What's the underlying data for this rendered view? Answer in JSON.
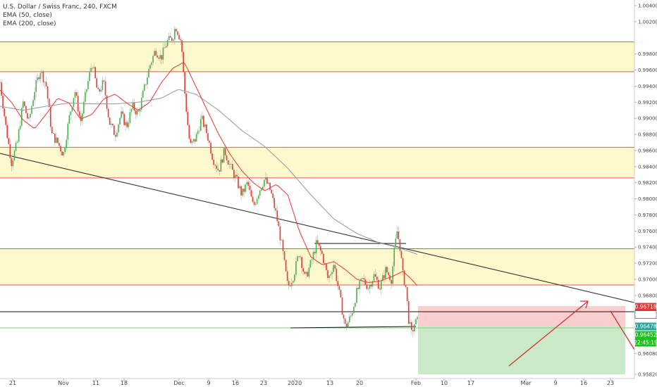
{
  "legend": {
    "title": "U.S. Dollar / Swiss Franc, 240, FXCM",
    "ema50": "EMA (50, close)",
    "ema200": "EMA (200, close)"
  },
  "chart_data": {
    "type": "candlestick",
    "symbol": "U.S. Dollar / Swiss Franc",
    "timeframe": "240",
    "source": "FXCM",
    "ylim": [
      0.9582,
      1.004
    ],
    "x_ticks": [
      "21",
      "Nov",
      "11",
      "18",
      "Dec",
      "9",
      "16",
      "23",
      "2020",
      "13",
      "20",
      "Feb",
      "10",
      "17",
      "Mar",
      "9",
      "16",
      "23"
    ],
    "y_ticks": [
      "1.00400",
      "1.00200",
      "0.99800",
      "0.99600",
      "0.99400",
      "0.99200",
      "0.99000",
      "0.98800",
      "0.98600",
      "0.98400",
      "0.98200",
      "0.98000",
      "0.97800",
      "0.97600",
      "0.97400",
      "0.97200",
      "0.97000",
      "0.96800",
      "0.96250",
      "0.96080",
      "0.95820"
    ],
    "price_tags": [
      {
        "label": "0.96718",
        "value": 0.96718,
        "color": "#e53935"
      },
      {
        "label": "0.96646",
        "value": 0.96646,
        "color": "#ffffff"
      },
      {
        "label": "0.96478",
        "value": 0.96478,
        "color": "#26a69a"
      },
      {
        "label": "0.96452",
        "value": 0.96452,
        "color": "#1fbf1f"
      },
      {
        "label": "22:45:19",
        "value": 0.96388,
        "color": "#1fbf1f"
      }
    ],
    "zones": [
      {
        "from": 0.9958,
        "to": 0.9995
      },
      {
        "from": 0.9826,
        "to": 0.9864
      },
      {
        "from": 0.9693,
        "to": 0.9738
      }
    ],
    "ema50": [
      {
        "t": 0,
        "v": 0.9935
      },
      {
        "t": 4,
        "v": 0.992
      },
      {
        "t": 8,
        "v": 0.9898
      },
      {
        "t": 12,
        "v": 0.9887
      },
      {
        "t": 16,
        "v": 0.9905
      },
      {
        "t": 20,
        "v": 0.9925
      },
      {
        "t": 24,
        "v": 0.9919
      },
      {
        "t": 28,
        "v": 0.9899
      },
      {
        "t": 32,
        "v": 0.9905
      },
      {
        "t": 36,
        "v": 0.9924
      },
      {
        "t": 40,
        "v": 0.993
      },
      {
        "t": 44,
        "v": 0.9919
      },
      {
        "t": 48,
        "v": 0.991
      },
      {
        "t": 52,
        "v": 0.992
      },
      {
        "t": 56,
        "v": 0.9944
      },
      {
        "t": 60,
        "v": 0.9962
      },
      {
        "t": 64,
        "v": 0.997
      },
      {
        "t": 68,
        "v": 0.994
      },
      {
        "t": 72,
        "v": 0.991
      },
      {
        "t": 76,
        "v": 0.988
      },
      {
        "t": 80,
        "v": 0.9855
      },
      {
        "t": 84,
        "v": 0.9835
      },
      {
        "t": 88,
        "v": 0.982
      },
      {
        "t": 92,
        "v": 0.981
      },
      {
        "t": 96,
        "v": 0.9818
      },
      {
        "t": 100,
        "v": 0.9805
      },
      {
        "t": 104,
        "v": 0.976
      },
      {
        "t": 108,
        "v": 0.9728
      },
      {
        "t": 112,
        "v": 0.9718
      },
      {
        "t": 116,
        "v": 0.9722
      },
      {
        "t": 120,
        "v": 0.9712
      },
      {
        "t": 124,
        "v": 0.97
      },
      {
        "t": 128,
        "v": 0.9696
      },
      {
        "t": 132,
        "v": 0.9698
      },
      {
        "t": 136,
        "v": 0.9703
      },
      {
        "t": 140,
        "v": 0.971
      },
      {
        "t": 143,
        "v": 0.97
      },
      {
        "t": 145,
        "v": 0.9692
      }
    ],
    "ema200": [
      {
        "t": 0,
        "v": 0.9915
      },
      {
        "t": 8,
        "v": 0.991
      },
      {
        "t": 16,
        "v": 0.9915
      },
      {
        "t": 24,
        "v": 0.9919
      },
      {
        "t": 32,
        "v": 0.9918
      },
      {
        "t": 40,
        "v": 0.9918
      },
      {
        "t": 48,
        "v": 0.992
      },
      {
        "t": 56,
        "v": 0.9925
      },
      {
        "t": 62,
        "v": 0.9936
      },
      {
        "t": 68,
        "v": 0.993
      },
      {
        "t": 76,
        "v": 0.991
      },
      {
        "t": 84,
        "v": 0.9885
      },
      {
        "t": 92,
        "v": 0.9865
      },
      {
        "t": 100,
        "v": 0.9838
      },
      {
        "t": 108,
        "v": 0.9805
      },
      {
        "t": 116,
        "v": 0.9775
      },
      {
        "t": 124,
        "v": 0.9757
      },
      {
        "t": 132,
        "v": 0.9745
      },
      {
        "t": 138,
        "v": 0.974
      },
      {
        "t": 142,
        "v": 0.9735
      },
      {
        "t": 145,
        "v": 0.9731
      }
    ],
    "close_path": [
      {
        "t": 0,
        "v": 0.9945
      },
      {
        "t": 2,
        "v": 0.989
      },
      {
        "t": 4,
        "v": 0.9845
      },
      {
        "t": 6,
        "v": 0.987
      },
      {
        "t": 8,
        "v": 0.992
      },
      {
        "t": 10,
        "v": 0.9895
      },
      {
        "t": 12,
        "v": 0.9935
      },
      {
        "t": 14,
        "v": 0.996
      },
      {
        "t": 16,
        "v": 0.9942
      },
      {
        "t": 18,
        "v": 0.988
      },
      {
        "t": 20,
        "v": 0.987
      },
      {
        "t": 22,
        "v": 0.9855
      },
      {
        "t": 24,
        "v": 0.99
      },
      {
        "t": 26,
        "v": 0.9935
      },
      {
        "t": 28,
        "v": 0.9895
      },
      {
        "t": 30,
        "v": 0.9935
      },
      {
        "t": 32,
        "v": 0.997
      },
      {
        "t": 34,
        "v": 0.993
      },
      {
        "t": 36,
        "v": 0.9945
      },
      {
        "t": 38,
        "v": 0.9895
      },
      {
        "t": 40,
        "v": 0.988
      },
      {
        "t": 42,
        "v": 0.9905
      },
      {
        "t": 44,
        "v": 0.989
      },
      {
        "t": 46,
        "v": 0.9915
      },
      {
        "t": 48,
        "v": 0.9905
      },
      {
        "t": 50,
        "v": 0.9935
      },
      {
        "t": 52,
        "v": 0.9965
      },
      {
        "t": 54,
        "v": 0.9985
      },
      {
        "t": 56,
        "v": 0.9975
      },
      {
        "t": 58,
        "v": 0.9995
      },
      {
        "t": 60,
        "v": 1.0
      },
      {
        "t": 61,
        "v": 1.0015
      },
      {
        "t": 63,
        "v": 0.9995
      },
      {
        "t": 64,
        "v": 0.994
      },
      {
        "t": 65,
        "v": 0.99
      },
      {
        "t": 66,
        "v": 0.9865
      },
      {
        "t": 68,
        "v": 0.9875
      },
      {
        "t": 70,
        "v": 0.99
      },
      {
        "t": 72,
        "v": 0.988
      },
      {
        "t": 74,
        "v": 0.985
      },
      {
        "t": 76,
        "v": 0.9835
      },
      {
        "t": 78,
        "v": 0.986
      },
      {
        "t": 80,
        "v": 0.984
      },
      {
        "t": 82,
        "v": 0.9825
      },
      {
        "t": 84,
        "v": 0.9805
      },
      {
        "t": 86,
        "v": 0.982
      },
      {
        "t": 88,
        "v": 0.979
      },
      {
        "t": 90,
        "v": 0.981
      },
      {
        "t": 92,
        "v": 0.9825
      },
      {
        "t": 94,
        "v": 0.981
      },
      {
        "t": 96,
        "v": 0.978
      },
      {
        "t": 98,
        "v": 0.974
      },
      {
        "t": 100,
        "v": 0.969
      },
      {
        "t": 102,
        "v": 0.9705
      },
      {
        "t": 104,
        "v": 0.9735
      },
      {
        "t": 106,
        "v": 0.97
      },
      {
        "t": 108,
        "v": 0.972
      },
      {
        "t": 110,
        "v": 0.9745
      },
      {
        "t": 112,
        "v": 0.973
      },
      {
        "t": 114,
        "v": 0.97
      },
      {
        "t": 116,
        "v": 0.972
      },
      {
        "t": 118,
        "v": 0.968
      },
      {
        "t": 120,
        "v": 0.964
      },
      {
        "t": 122,
        "v": 0.9655
      },
      {
        "t": 124,
        "v": 0.9685
      },
      {
        "t": 126,
        "v": 0.97
      },
      {
        "t": 128,
        "v": 0.969
      },
      {
        "t": 130,
        "v": 0.9705
      },
      {
        "t": 132,
        "v": 0.969
      },
      {
        "t": 134,
        "v": 0.9712
      },
      {
        "t": 136,
        "v": 0.97
      },
      {
        "t": 137,
        "v": 0.9735
      },
      {
        "t": 138,
        "v": 0.976
      },
      {
        "t": 139,
        "v": 0.974
      },
      {
        "t": 140,
        "v": 0.9705
      },
      {
        "t": 141,
        "v": 0.969
      },
      {
        "t": 142,
        "v": 0.965
      },
      {
        "t": 143,
        "v": 0.9632
      },
      {
        "t": 144,
        "v": 0.9645
      },
      {
        "t": 145,
        "v": 0.9648
      }
    ]
  }
}
